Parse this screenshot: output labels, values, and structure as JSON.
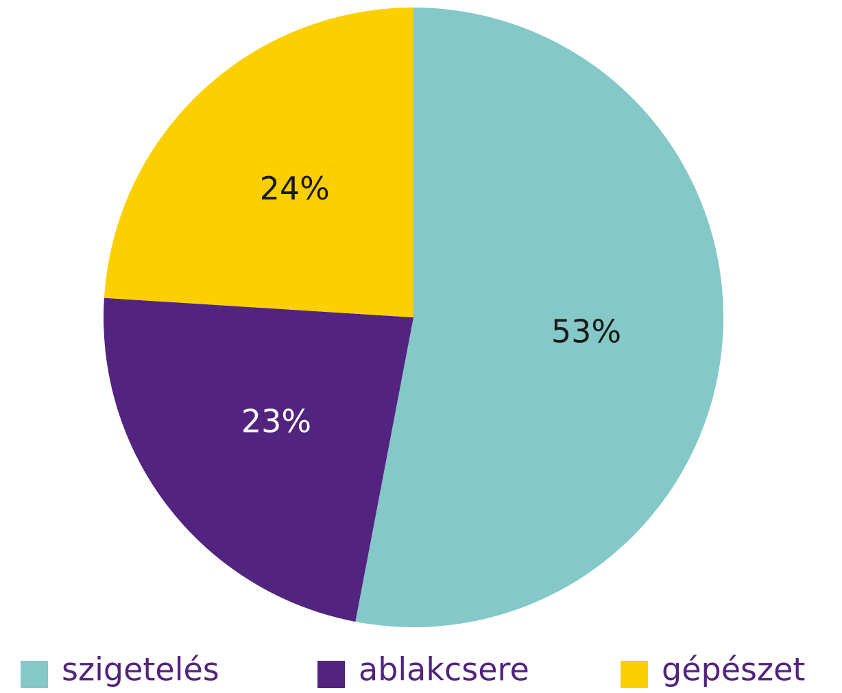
{
  "chart_data": {
    "type": "pie",
    "categories": [
      "szigetelés",
      "ablakcsere",
      "gépészet"
    ],
    "values": [
      53,
      23,
      24
    ],
    "value_labels": [
      "53%",
      "23%",
      "24%"
    ],
    "colors": [
      "#84c8c8",
      "#52237f",
      "#fccf00"
    ],
    "legend": "bottom"
  }
}
